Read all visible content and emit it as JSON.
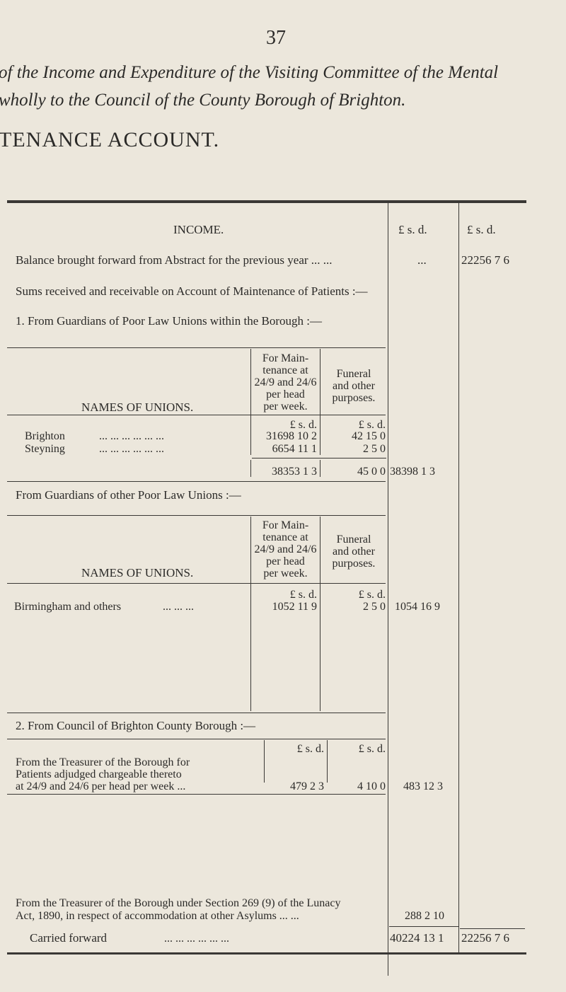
{
  "page_number": "37",
  "title_line1": "of the Income and Expenditure of the Visiting Committee of the Mental",
  "title_line2": "wholly to the Council of the County Borough of Brighton.",
  "heading": "TENANCE ACCOUNT.",
  "income_label": "INCOME.",
  "col_headers": {
    "lsd1": "£   s.  d.",
    "lsd2": "£     s.  d.",
    "small_lsd": "£  s.  d."
  },
  "balance": {
    "label": "Balance brought forward from Abstract for the previous year   ...   ...",
    "col1": "...",
    "col2": "22256  7  6"
  },
  "sums_label": "Sums received and receivable on Account of Maintenance of Patients :—",
  "section1": {
    "label": "1.  From Guardians of Poor Law Unions within the Borough :—",
    "names_header": "NAMES OF UNIONS.",
    "maint_header": [
      "For Main-",
      "tenance at",
      "24/9 and 24/6",
      "per head",
      "per week."
    ],
    "funeral_header": [
      "Funeral",
      "and other",
      "purposes."
    ],
    "rows": [
      {
        "name": "Brighton",
        "dots": "...    ...    ...    ...    ...    ...",
        "maint": "31698 10  2",
        "funeral": "42 15  0"
      },
      {
        "name": "Steyning",
        "dots": "...    ...    ...    ...    ...    ...",
        "maint": "6654 11  1",
        "funeral": "2  5  0"
      }
    ],
    "total_maint": "38353  1  3",
    "total_funeral": "45  0  0",
    "total": "38398  1  3"
  },
  "section_other": {
    "label": "From Guardians of other Poor Law Unions :—",
    "rows": [
      {
        "name": "Birmingham and others",
        "dots": "...    ...    ...",
        "maint": "1052 11  9",
        "funeral": "2  5  0",
        "total": "1054 16  9"
      }
    ]
  },
  "section2": {
    "label": "2.  From Council of Brighton County Borough :—",
    "treasurer_lines": [
      "From the Treasurer of the Borough for",
      "Patients adjudged chargeable thereto",
      "at 24/9 and 24/6 per head per week   ..."
    ],
    "treasurer_maint": "479  2  3",
    "treasurer_funeral": "4 10  0",
    "treasurer_total": "483 12  3",
    "section269_lines": [
      "From the Treasurer of the Borough under Section 269 (9) of the Lunacy",
      "Act, 1890, in respect of accommodation at other Asylums  ...   ..."
    ],
    "section269_total": "288  2 10"
  },
  "carried": {
    "label": "Carried forward",
    "dots": "...    ...    ...    ...    ...    ...",
    "col1": "40224 13  1",
    "col2": "22256  7  6"
  }
}
